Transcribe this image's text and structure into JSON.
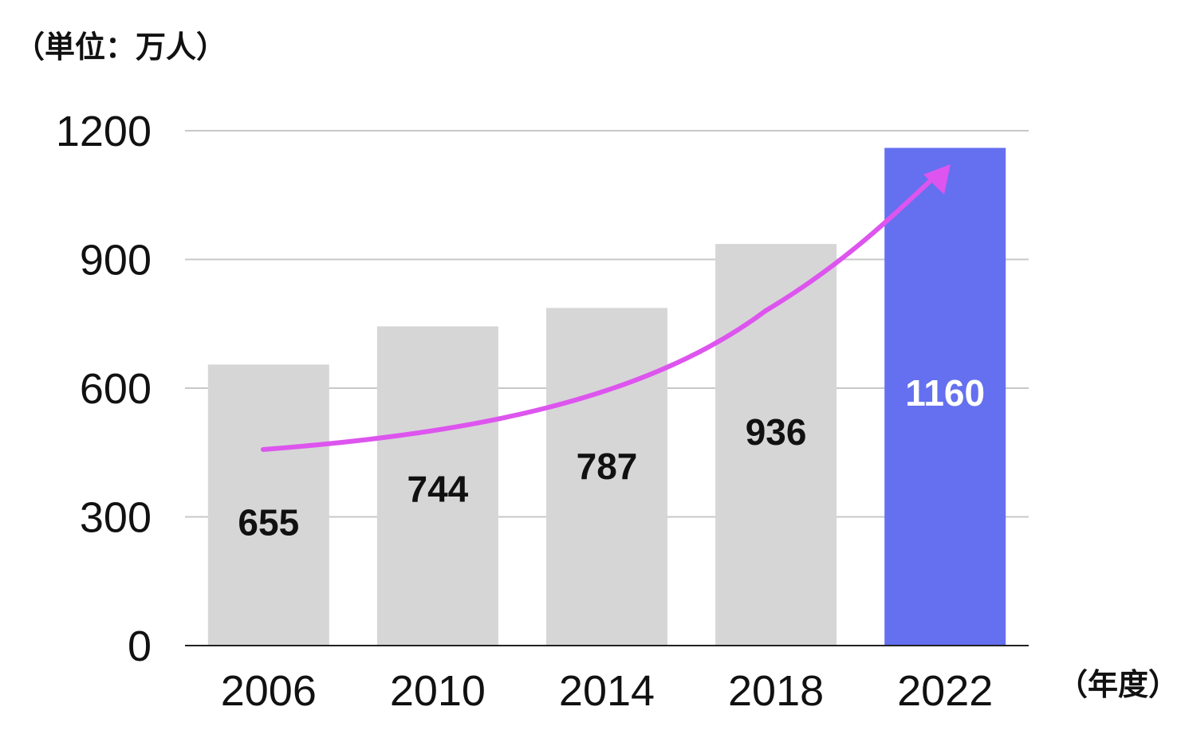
{
  "chart_data": {
    "type": "bar",
    "unit_label": "（単位：万人）",
    "x_unit_label": "（年度）",
    "categories": [
      "2006",
      "2010",
      "2014",
      "2018",
      "2022"
    ],
    "values": [
      655,
      744,
      787,
      936,
      1160
    ],
    "value_labels": [
      "655",
      "744",
      "787",
      "936",
      "1160"
    ],
    "y_ticks": [
      "0",
      "300",
      "600",
      "900",
      "1200"
    ],
    "y_tick_values": [
      0,
      300,
      600,
      900,
      1200
    ],
    "ylim": [
      0,
      1200
    ],
    "grid": true,
    "annotation": "upward trend arrow",
    "colors": {
      "bar": "#d6d6d6",
      "highlight_bar": "#6470ef",
      "label": "#111111",
      "highlight_label": "#ffffff",
      "arrow": "#dd55ee"
    },
    "highlight_index": 4
  }
}
